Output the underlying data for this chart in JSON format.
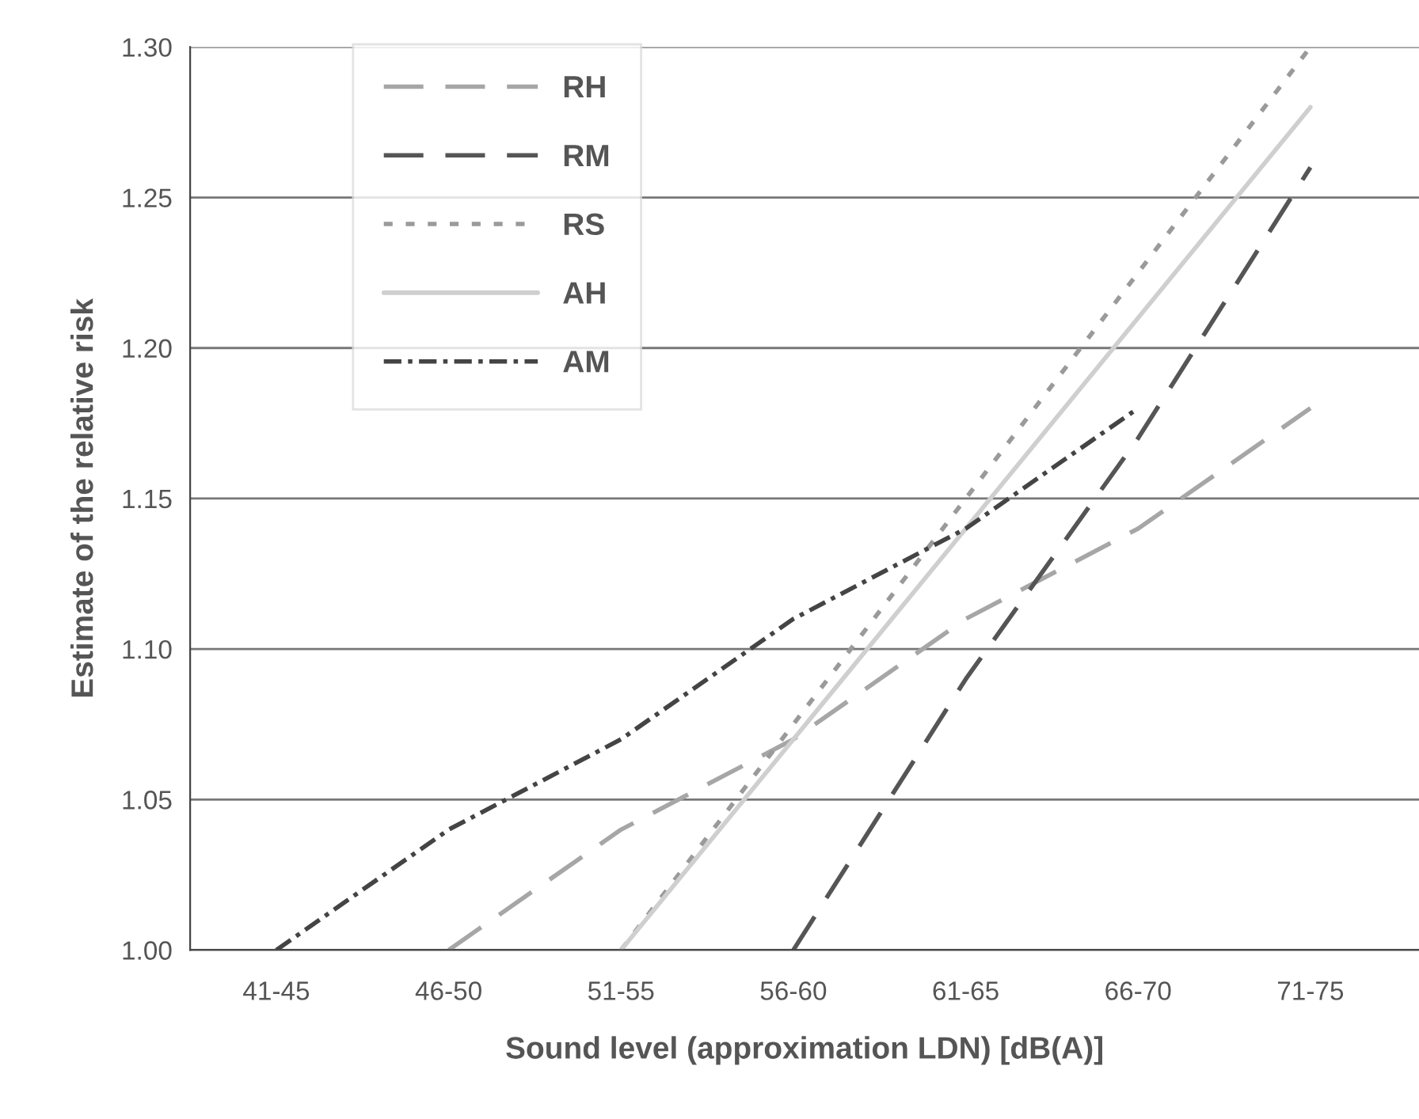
{
  "chart_data": {
    "type": "line",
    "xlabel": "Sound level (approximation LDN) [dB(A)]",
    "ylabel": "Estimate of the relative risk",
    "categories": [
      "41-45",
      "46-50",
      "51-55",
      "56-60",
      "61-65",
      "66-70",
      "71-75"
    ],
    "series": [
      {
        "name": "RH",
        "color": "#a6a6a6",
        "line_style": "dashed",
        "values": [
          null,
          1.0,
          1.04,
          1.07,
          1.11,
          1.14,
          1.18
        ]
      },
      {
        "name": "RM",
        "color": "#555555",
        "line_style": "dashed",
        "values": [
          null,
          null,
          null,
          1.0,
          1.09,
          1.17,
          1.26
        ]
      },
      {
        "name": "RS",
        "color": "#9a9a9a",
        "line_style": "dotted",
        "values": [
          null,
          null,
          1.0,
          1.075,
          1.15,
          1.225,
          1.3
        ]
      },
      {
        "name": "AH",
        "color": "#cfcfcf",
        "line_style": "solid",
        "values": [
          null,
          null,
          1.0,
          1.07,
          1.14,
          1.21,
          1.28
        ]
      },
      {
        "name": "AM",
        "color": "#444444",
        "line_style": "dashdot",
        "values": [
          1.0,
          1.04,
          1.07,
          1.11,
          1.14,
          1.18,
          null
        ]
      }
    ],
    "ylim": [
      1.0,
      1.3
    ],
    "yticks": [
      {
        "value": 1.0,
        "label": "1.00"
      },
      {
        "value": 1.05,
        "label": "1.05"
      },
      {
        "value": 1.1,
        "label": "1.10"
      },
      {
        "value": 1.15,
        "label": "1.15"
      },
      {
        "value": 1.2,
        "label": "1.20"
      },
      {
        "value": 1.25,
        "label": "1.25"
      },
      {
        "value": 1.3,
        "label": "1.30"
      }
    ],
    "grid": "y",
    "legend": "top left",
    "marker": "none"
  }
}
